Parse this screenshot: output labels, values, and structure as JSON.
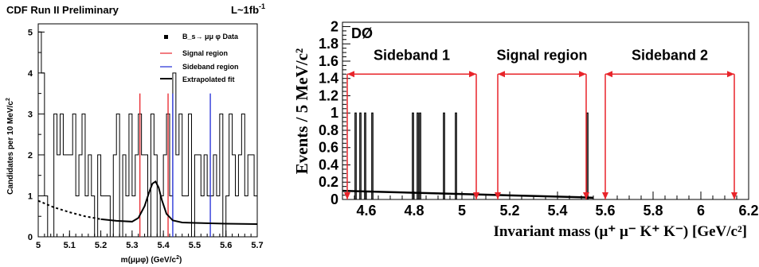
{
  "cdf": {
    "header_left": "CDF Run II Preliminary",
    "header_right_main": "L~1fb",
    "header_right_sup": "-1",
    "ylabel_main": "Candidates per 10 MeV/c",
    "ylabel_sup": "2",
    "xlabel_main": "m(μμφ) (GeV/c",
    "xlabel_sup": "2",
    "xlabel_end": ")",
    "legend": {
      "data_label": "B_s→ μμ φ Data",
      "signal_label": "Signal region",
      "sideband_label": "Sideband region",
      "fit_label": "Extrapolated fit"
    },
    "colors": {
      "signal": "#e8242a",
      "sideband": "#1f2bd6",
      "data": "#000000"
    }
  },
  "d0": {
    "experiment": "DØ",
    "ylabel": "Events / 5 MeV/c²",
    "xlabel_main": "Invariant mass (μ",
    "xlabel_rest": "⁺ μ⁻ K⁺ K⁻) [GeV/c²]",
    "regions": [
      {
        "label": "Sideband 1",
        "from": 4.52,
        "to": 5.06
      },
      {
        "label": "Signal region",
        "from": 5.15,
        "to": 5.52
      },
      {
        "label": "Sideband 2",
        "from": 5.6,
        "to": 6.14
      }
    ],
    "colors": {
      "arrow": "#e8242a",
      "data": "#000000"
    }
  },
  "chart_data": [
    {
      "type": "histogram",
      "title": "CDF Run II Preliminary",
      "xlabel": "m(μμφ) (GeV/c²)",
      "ylabel": "Candidates per 10 MeV/c²",
      "xlim": [
        5.0,
        5.7
      ],
      "ylim": [
        0,
        5.2
      ],
      "xticks": [
        "5",
        "5.1",
        "5.2",
        "5.3",
        "5.4",
        "5.5",
        "5.6",
        "5.7"
      ],
      "yticks": [
        "0",
        "1",
        "2",
        "3",
        "4",
        "5"
      ],
      "bin_width": 0.01,
      "bin_start": 5.0,
      "series": [
        {
          "name": "B_s→ μμ φ Data",
          "values": [
            5,
            4,
            1,
            0,
            0,
            3,
            2,
            3,
            2,
            2,
            2,
            3,
            1,
            2,
            3,
            1,
            2,
            1,
            0,
            2,
            1,
            1,
            1,
            0,
            2,
            3,
            0,
            2,
            1,
            3,
            1,
            2,
            3,
            2,
            2,
            0,
            3,
            2,
            0,
            1,
            2,
            3,
            1,
            4,
            2,
            3,
            1,
            1,
            3,
            0,
            2,
            2,
            1,
            2,
            1,
            1,
            2,
            1,
            3,
            0,
            1,
            3,
            2,
            1,
            2,
            3,
            1,
            2,
            2,
            1
          ]
        },
        {
          "name": "Extrapolated fit",
          "dashed_until": 5.2,
          "x": [
            5.0,
            5.05,
            5.1,
            5.15,
            5.2,
            5.25,
            5.3,
            5.32,
            5.34,
            5.355,
            5.365,
            5.375,
            5.385,
            5.395,
            5.41,
            5.43,
            5.46,
            5.5,
            5.55,
            5.6,
            5.7
          ],
          "y": [
            0.88,
            0.72,
            0.6,
            0.5,
            0.43,
            0.39,
            0.37,
            0.46,
            0.75,
            1.1,
            1.3,
            1.35,
            1.2,
            0.9,
            0.56,
            0.4,
            0.35,
            0.34,
            0.33,
            0.32,
            0.31
          ]
        }
      ],
      "signal_region": [
        5.325,
        5.415
      ],
      "sideband_lines": [
        5.43,
        5.55
      ],
      "region_line_height": 3.5
    },
    {
      "type": "histogram",
      "title": "DØ",
      "xlabel": "Invariant mass (μ⁺ μ⁻ K⁺ K⁻) [GeV/c²]",
      "ylabel": "Events / 5 MeV/c²",
      "xlim": [
        4.5,
        6.2
      ],
      "ylim": [
        0,
        2.05
      ],
      "xticks": [
        "4.6",
        "4.8",
        "5",
        "5.2",
        "5.4",
        "5.6",
        "5.8",
        "6",
        "6.2"
      ],
      "yticks": [
        "0",
        "0.2",
        "0.4",
        "0.6",
        "0.8",
        "1",
        "1.2",
        "1.4",
        "1.6",
        "1.8",
        "2"
      ],
      "bin_width": 0.005,
      "series": [
        {
          "name": "",
          "events_at": [
            4.555,
            4.575,
            4.595,
            4.625,
            4.795,
            4.815,
            4.825,
            4.925,
            4.975,
            5.525
          ],
          "counts": [
            1,
            1,
            1,
            1,
            1,
            1,
            1,
            1,
            1,
            1
          ]
        },
        {
          "name": "",
          "x": [
            4.5,
            4.7,
            4.9,
            5.1,
            5.3,
            5.5,
            5.55
          ],
          "y": [
            0.1,
            0.085,
            0.07,
            0.055,
            0.04,
            0.025,
            0.02
          ]
        }
      ],
      "region_arrow_y": 1.45
    }
  ]
}
